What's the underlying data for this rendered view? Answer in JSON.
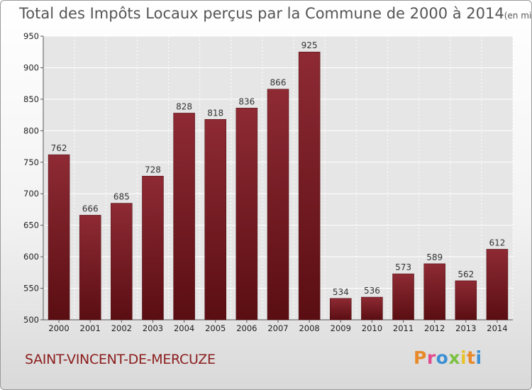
{
  "chart_data": {
    "type": "bar",
    "title": "Total des Impôts Locaux perçus par la Commune de 2000 à 2014",
    "title_unit": "(en milliers d'€)",
    "categories": [
      "2000",
      "2001",
      "2002",
      "2003",
      "2004",
      "2005",
      "2006",
      "2007",
      "2008",
      "2009",
      "2010",
      "2011",
      "2012",
      "2013",
      "2014"
    ],
    "values": [
      762,
      666,
      685,
      728,
      828,
      818,
      836,
      866,
      925,
      534,
      536,
      573,
      589,
      562,
      612
    ],
    "ylim": [
      500,
      950
    ],
    "yticks": [
      500,
      550,
      600,
      650,
      700,
      750,
      800,
      850,
      900,
      950
    ],
    "grid": true,
    "bar_color": "#7a1a22"
  },
  "footer": {
    "commune": "SAINT-VINCENT-DE-MERCUZE",
    "logo": "Proxiti",
    "logo_colors": [
      "#e8892a",
      "#e14b8e",
      "#3b8fd4",
      "#7cc142",
      "#e8c32a",
      "#e8892a",
      "#3b8fd4"
    ]
  }
}
